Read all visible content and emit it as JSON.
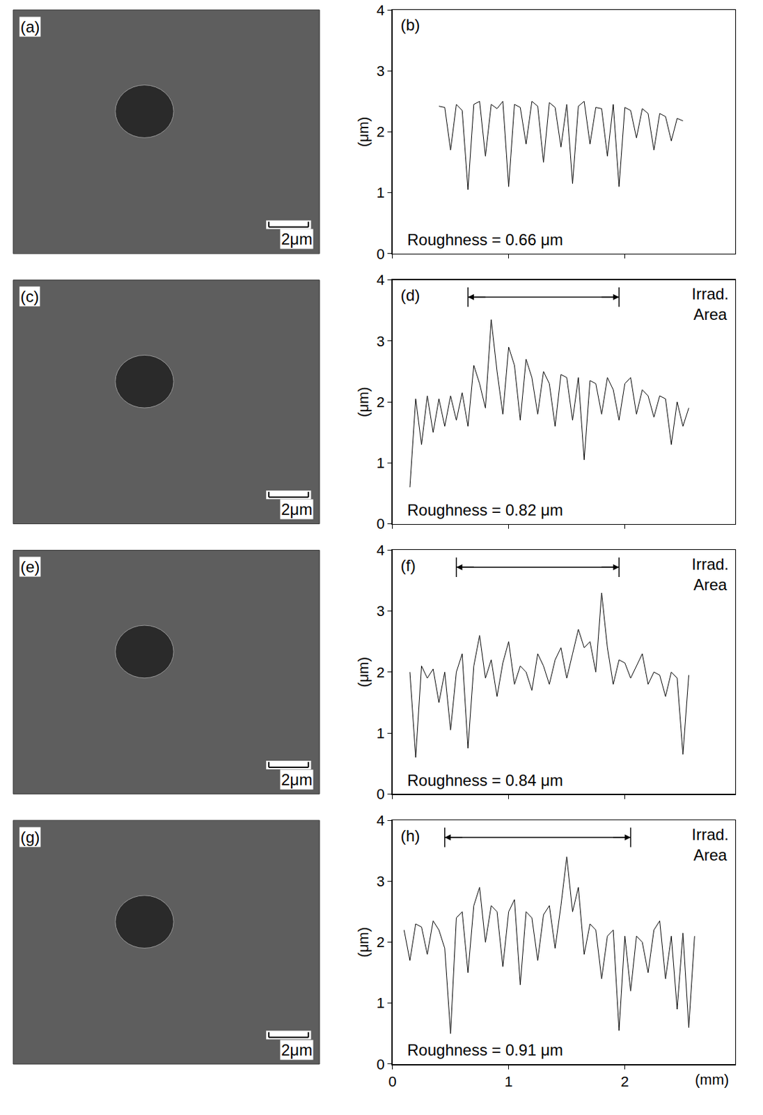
{
  "images": [
    {
      "letter": "(a)",
      "scale_bar": "2μm"
    },
    {
      "letter": "(c)",
      "scale_bar": "2μm"
    },
    {
      "letter": "(e)",
      "scale_bar": "2μm"
    },
    {
      "letter": "(g)",
      "scale_bar": "2μm"
    }
  ],
  "chart_data": [
    {
      "type": "line",
      "letter": "(b)",
      "color": "#000000",
      "x": [
        0.4,
        0.45,
        0.5,
        0.55,
        0.6,
        0.65,
        0.7,
        0.75,
        0.8,
        0.85,
        0.9,
        0.95,
        1.0,
        1.05,
        1.1,
        1.15,
        1.2,
        1.25,
        1.3,
        1.35,
        1.4,
        1.45,
        1.5,
        1.55,
        1.6,
        1.65,
        1.7,
        1.75,
        1.8,
        1.85,
        1.9,
        1.95,
        2.0,
        2.05,
        2.1,
        2.15,
        2.2,
        2.25,
        2.3,
        2.35,
        2.4,
        2.45,
        2.5
      ],
      "values": [
        2.42,
        2.4,
        1.7,
        2.45,
        2.35,
        1.05,
        2.45,
        2.5,
        1.6,
        2.45,
        2.38,
        2.5,
        1.1,
        2.45,
        2.4,
        1.8,
        2.5,
        2.42,
        1.5,
        2.48,
        2.4,
        1.75,
        2.45,
        1.15,
        2.42,
        2.5,
        1.8,
        2.4,
        2.38,
        1.6,
        2.45,
        1.1,
        2.4,
        2.35,
        1.9,
        2.38,
        2.3,
        1.7,
        2.3,
        2.25,
        1.85,
        2.22,
        2.18
      ],
      "xlim": [
        0,
        2.95
      ],
      "xticks": [
        0,
        1,
        2
      ],
      "ylim": [
        0,
        4
      ],
      "yticks": [
        0,
        1,
        2,
        3,
        4
      ],
      "ylabel": "(μm)",
      "annotations": [
        "Roughness = 0.66 μm"
      ],
      "tick_labels": "y"
    },
    {
      "type": "line",
      "letter": "(d)",
      "color": "#000000",
      "x": [
        0.15,
        0.2,
        0.25,
        0.3,
        0.35,
        0.4,
        0.45,
        0.5,
        0.55,
        0.6,
        0.65,
        0.7,
        0.75,
        0.8,
        0.85,
        0.9,
        0.95,
        1.0,
        1.05,
        1.1,
        1.15,
        1.2,
        1.25,
        1.3,
        1.35,
        1.4,
        1.45,
        1.5,
        1.55,
        1.6,
        1.65,
        1.7,
        1.75,
        1.8,
        1.85,
        1.9,
        1.95,
        2.0,
        2.05,
        2.1,
        2.15,
        2.2,
        2.25,
        2.3,
        2.35,
        2.4,
        2.45,
        2.5,
        2.55
      ],
      "values": [
        0.6,
        2.05,
        1.3,
        2.1,
        1.5,
        2.05,
        1.6,
        2.1,
        1.7,
        2.15,
        1.6,
        2.6,
        2.3,
        1.9,
        3.35,
        2.5,
        1.8,
        2.9,
        2.6,
        1.7,
        2.7,
        2.4,
        1.8,
        2.5,
        2.3,
        1.6,
        2.45,
        2.4,
        1.7,
        2.4,
        1.05,
        2.35,
        2.3,
        1.8,
        2.4,
        2.2,
        1.7,
        2.3,
        2.4,
        1.8,
        2.2,
        2.1,
        1.75,
        2.1,
        2.05,
        1.3,
        2.0,
        1.6,
        1.9
      ],
      "xlim": [
        0,
        2.95
      ],
      "xticks": [
        0,
        1,
        2
      ],
      "ylim": [
        0,
        4
      ],
      "yticks": [
        0,
        1,
        2,
        3,
        4
      ],
      "ylabel": "(μm)",
      "annotations": [
        "Roughness = 0.82 μm"
      ],
      "tick_labels": "y",
      "irrad_area": {
        "label": "Irrad. Area",
        "x": [
          0.65,
          1.95
        ]
      }
    },
    {
      "type": "line",
      "letter": "(f)",
      "color": "#000000",
      "x": [
        0.15,
        0.2,
        0.25,
        0.3,
        0.35,
        0.4,
        0.45,
        0.5,
        0.55,
        0.6,
        0.65,
        0.7,
        0.75,
        0.8,
        0.85,
        0.9,
        0.95,
        1.0,
        1.05,
        1.1,
        1.15,
        1.2,
        1.25,
        1.3,
        1.35,
        1.4,
        1.45,
        1.5,
        1.55,
        1.6,
        1.65,
        1.7,
        1.75,
        1.8,
        1.85,
        1.9,
        1.95,
        2.0,
        2.05,
        2.1,
        2.15,
        2.2,
        2.25,
        2.3,
        2.35,
        2.4,
        2.45,
        2.5,
        2.55
      ],
      "values": [
        2.0,
        0.6,
        2.1,
        1.9,
        2.05,
        1.5,
        2.0,
        1.05,
        2.0,
        2.3,
        0.75,
        2.1,
        2.6,
        1.9,
        2.2,
        1.6,
        2.15,
        2.5,
        1.8,
        2.1,
        2.0,
        1.7,
        2.3,
        2.1,
        1.8,
        2.2,
        2.4,
        1.9,
        2.3,
        2.7,
        2.4,
        2.5,
        2.0,
        3.3,
        2.4,
        1.8,
        2.2,
        2.15,
        1.9,
        2.1,
        2.3,
        1.8,
        2.0,
        1.95,
        1.6,
        2.0,
        1.9,
        0.65,
        1.95
      ],
      "xlim": [
        0,
        2.95
      ],
      "xticks": [
        0,
        1,
        2
      ],
      "ylim": [
        0,
        4
      ],
      "yticks": [
        0,
        1,
        2,
        3,
        4
      ],
      "ylabel": "(μm)",
      "annotations": [
        "Roughness = 0.84 μm"
      ],
      "tick_labels": "y",
      "irrad_area": {
        "label": "Irrad. Area",
        "x": [
          0.55,
          1.95
        ]
      }
    },
    {
      "type": "line",
      "letter": "(h)",
      "color": "#000000",
      "x": [
        0.1,
        0.15,
        0.2,
        0.25,
        0.3,
        0.35,
        0.4,
        0.45,
        0.5,
        0.55,
        0.6,
        0.65,
        0.7,
        0.75,
        0.8,
        0.85,
        0.9,
        0.95,
        1.0,
        1.05,
        1.1,
        1.15,
        1.2,
        1.25,
        1.3,
        1.35,
        1.4,
        1.45,
        1.5,
        1.55,
        1.6,
        1.65,
        1.7,
        1.75,
        1.8,
        1.85,
        1.9,
        1.95,
        2.0,
        2.05,
        2.1,
        2.15,
        2.2,
        2.25,
        2.3,
        2.35,
        2.4,
        2.45,
        2.5,
        2.55,
        2.6
      ],
      "values": [
        2.2,
        1.7,
        2.3,
        2.25,
        1.8,
        2.35,
        2.2,
        1.9,
        0.5,
        2.4,
        2.5,
        1.5,
        2.6,
        2.9,
        2.0,
        2.6,
        2.5,
        1.6,
        2.5,
        2.7,
        1.3,
        2.5,
        2.4,
        1.7,
        2.45,
        2.6,
        1.9,
        2.6,
        3.4,
        2.5,
        2.9,
        1.8,
        2.3,
        2.2,
        1.4,
        2.1,
        2.2,
        0.55,
        2.1,
        1.2,
        2.1,
        2.0,
        1.5,
        2.2,
        2.35,
        1.4,
        2.1,
        0.9,
        2.15,
        0.6,
        2.1
      ],
      "xlim": [
        0,
        2.95
      ],
      "xticks": [
        0,
        1,
        2
      ],
      "ylim": [
        0,
        4
      ],
      "yticks": [
        0,
        1,
        2,
        3,
        4
      ],
      "xlabel": "(mm)",
      "ylabel": "(μm)",
      "annotations": [
        "Roughness = 0.91 μm"
      ],
      "irrad_area": {
        "label": "Irrad. Area",
        "x": [
          0.45,
          2.05
        ]
      }
    }
  ]
}
